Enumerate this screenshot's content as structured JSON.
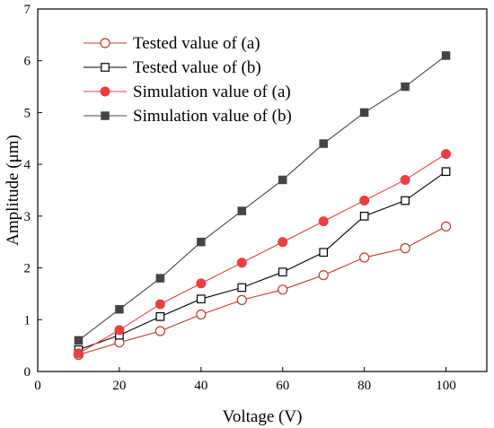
{
  "chart_data": {
    "type": "line",
    "xlabel": "Voltage (V)",
    "ylabel": "Amplitude (μm)",
    "xlim": [
      0,
      110
    ],
    "ylim": [
      0,
      7
    ],
    "xticks": [
      0,
      20,
      40,
      60,
      80,
      100
    ],
    "yticks": [
      0,
      1,
      2,
      3,
      4,
      5,
      6,
      7
    ],
    "grid": false,
    "legend_position": "top-left",
    "x": [
      10,
      20,
      30,
      40,
      50,
      60,
      70,
      80,
      90,
      100
    ],
    "series": [
      {
        "name": "Tested value of (a)",
        "marker": "open-circle",
        "color": "#c0392b",
        "values": [
          0.32,
          0.56,
          0.78,
          1.1,
          1.38,
          1.58,
          1.86,
          2.2,
          2.38,
          2.8
        ]
      },
      {
        "name": "Tested value of (b)",
        "marker": "open-square",
        "color": "#000000",
        "values": [
          0.42,
          0.7,
          1.06,
          1.4,
          1.62,
          1.92,
          2.3,
          3.0,
          3.3,
          3.86
        ]
      },
      {
        "name": "Simulation value of (a)",
        "marker": "filled-circle",
        "color": "#e84040",
        "values": [
          0.35,
          0.8,
          1.3,
          1.7,
          2.1,
          2.5,
          2.9,
          3.3,
          3.7,
          4.2
        ]
      },
      {
        "name": "Simulation value of (b)",
        "marker": "filled-square",
        "color": "#444444",
        "values": [
          0.6,
          1.2,
          1.8,
          2.5,
          3.1,
          3.7,
          4.4,
          5.0,
          5.5,
          6.1
        ]
      }
    ]
  }
}
